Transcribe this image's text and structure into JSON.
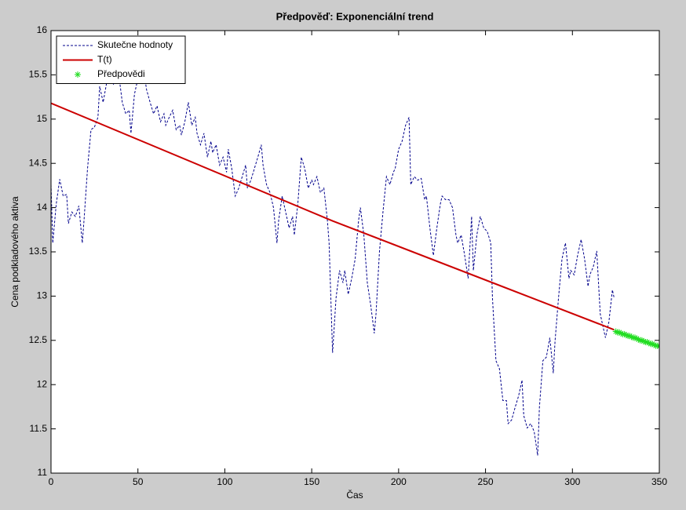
{
  "chart_data": {
    "type": "line",
    "title": "Předpověď: Exponenciální trend",
    "xlabel": "Čas",
    "ylabel": "Cena podkladového aktiva",
    "xlim": [
      0,
      350
    ],
    "xticks": [
      0,
      50,
      100,
      150,
      200,
      250,
      300,
      350
    ],
    "ylim": [
      11,
      16
    ],
    "yticks": [
      11,
      11.5,
      12,
      12.5,
      13,
      13.5,
      14,
      14.5,
      15,
      15.5,
      16
    ],
    "grid": false,
    "legend": "northwest",
    "series": [
      {
        "name": "Skutečne hodnoty",
        "color": "#00008b",
        "linestyle": "dashed",
        "marker": "none",
        "x": [
          0,
          1,
          3,
          5,
          7,
          9,
          10,
          12,
          14,
          16,
          18,
          19,
          21,
          23,
          25,
          27,
          28,
          30,
          32,
          34,
          36,
          37,
          39,
          41,
          43,
          45,
          46,
          48,
          50,
          52,
          54,
          55,
          57,
          59,
          61,
          63,
          65,
          66,
          68,
          70,
          72,
          74,
          75,
          77,
          79,
          81,
          83,
          84,
          86,
          88,
          90,
          92,
          93,
          95,
          97,
          99,
          101,
          102,
          104,
          106,
          108,
          110,
          112,
          113,
          115,
          117,
          119,
          121,
          122,
          124,
          126,
          128,
          130,
          131,
          133,
          135,
          137,
          139,
          140,
          142,
          144,
          146,
          148,
          150,
          151,
          153,
          155,
          157,
          159,
          160,
          162,
          164,
          166,
          168,
          169,
          171,
          173,
          175,
          177,
          178,
          180,
          182,
          184,
          186,
          187,
          189,
          191,
          193,
          195,
          197,
          198,
          200,
          202,
          204,
          206,
          207,
          209,
          211,
          213,
          215,
          216,
          218,
          220,
          222,
          224,
          225,
          227,
          229,
          231,
          233,
          234,
          236,
          238,
          240,
          242,
          243,
          245,
          247,
          249,
          251,
          253,
          254,
          256,
          258,
          260,
          262,
          263,
          265,
          267,
          269,
          271,
          272,
          274,
          276,
          278,
          280,
          281,
          283,
          285,
          287,
          289,
          290,
          292,
          294,
          296,
          298,
          299,
          301,
          303,
          305,
          307,
          309,
          310,
          312,
          314,
          316,
          318,
          319,
          321,
          323,
          324
        ],
        "values": [
          14.26,
          13.6,
          14.04,
          14.32,
          14.13,
          14.15,
          13.82,
          13.95,
          13.9,
          14.02,
          13.6,
          13.86,
          14.44,
          14.88,
          14.91,
          15.02,
          15.37,
          15.19,
          15.41,
          15.5,
          15.39,
          15.46,
          15.5,
          15.19,
          15.06,
          15.1,
          14.84,
          15.28,
          15.46,
          15.5,
          15.46,
          15.33,
          15.19,
          15.06,
          15.15,
          14.97,
          15.06,
          14.93,
          15.02,
          15.1,
          14.88,
          14.93,
          14.82,
          14.97,
          15.19,
          14.93,
          15.02,
          14.84,
          14.71,
          14.84,
          14.57,
          14.75,
          14.62,
          14.71,
          14.48,
          14.57,
          14.4,
          14.66,
          14.44,
          14.13,
          14.22,
          14.35,
          14.48,
          14.22,
          14.31,
          14.44,
          14.57,
          14.71,
          14.48,
          14.26,
          14.17,
          14,
          13.6,
          13.86,
          14.13,
          13.95,
          13.77,
          13.9,
          13.69,
          14.04,
          14.57,
          14.44,
          14.22,
          14.31,
          14.26,
          14.35,
          14.17,
          14.22,
          13.86,
          13.6,
          12.36,
          12.98,
          13.29,
          13.15,
          13.29,
          13.02,
          13.2,
          13.42,
          13.86,
          14,
          13.69,
          13.15,
          12.89,
          12.58,
          12.8,
          13.51,
          13.95,
          14.35,
          14.26,
          14.4,
          14.44,
          14.66,
          14.75,
          14.93,
          15.02,
          14.26,
          14.35,
          14.31,
          14.33,
          14.09,
          14.13,
          13.77,
          13.46,
          13.77,
          14.04,
          14.13,
          14.09,
          14.09,
          14,
          13.69,
          13.6,
          13.69,
          13.46,
          13.2,
          13.9,
          13.29,
          13.69,
          13.9,
          13.77,
          13.73,
          13.6,
          12.98,
          12.27,
          12.18,
          11.82,
          11.82,
          11.56,
          11.6,
          11.74,
          11.87,
          12.05,
          11.65,
          11.51,
          11.56,
          11.47,
          11.2,
          11.74,
          12.27,
          12.31,
          12.53,
          12.13,
          12.49,
          12.98,
          13.42,
          13.6,
          13.2,
          13.29,
          13.24,
          13.46,
          13.64,
          13.42,
          13.11,
          13.24,
          13.33,
          13.51,
          12.8,
          12.62,
          12.53,
          12.71,
          13.07,
          12.98
        ]
      },
      {
        "name": "T(t)",
        "color": "#cc0000",
        "linestyle": "solid",
        "marker": "none",
        "x": [
          0,
          162,
          324
        ],
        "values": [
          15.18,
          13.85,
          12.62
        ]
      },
      {
        "name": "Předpovědi",
        "color": "#22dd22",
        "linestyle": "none",
        "marker": "*",
        "x": [
          325,
          326,
          327,
          328,
          329,
          330,
          331,
          332,
          333,
          334,
          335,
          336,
          337,
          338,
          339,
          340,
          341,
          342,
          343,
          344,
          345,
          346,
          347,
          348,
          349,
          350
        ],
        "values": [
          12.6,
          12.59,
          12.59,
          12.58,
          12.57,
          12.57,
          12.56,
          12.55,
          12.55,
          12.54,
          12.53,
          12.53,
          12.52,
          12.51,
          12.5,
          12.5,
          12.49,
          12.48,
          12.48,
          12.47,
          12.46,
          12.46,
          12.45,
          12.44,
          12.44,
          12.43
        ]
      }
    ]
  }
}
